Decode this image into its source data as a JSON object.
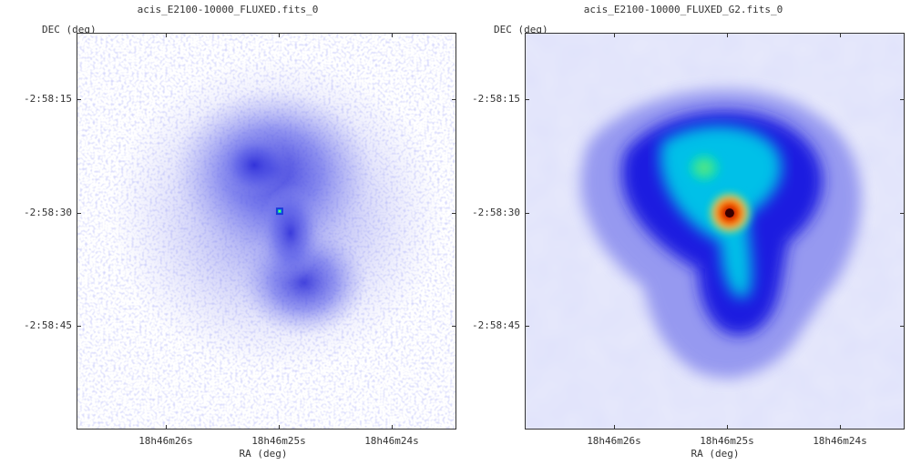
{
  "panels": [
    {
      "title": "acis_E2100-10000_FLUXED.fits_0",
      "y_axis_label": "DEC (deg)",
      "x_axis_label": "RA (deg)",
      "y_ticks": [
        "-2:58:15",
        "-2:58:30",
        "-2:58:45"
      ],
      "x_ticks": [
        "18h46m26s",
        "18h46m25s",
        "18h46m24s"
      ]
    },
    {
      "title": "acis_E2100-10000_FLUXED_G2.fits_0",
      "y_axis_label": "DEC (deg)",
      "x_axis_label": "RA (deg)",
      "y_ticks": [
        "-2:58:15",
        "-2:58:30",
        "-2:58:45"
      ],
      "x_ticks": [
        "18h46m26s",
        "18h46m25s",
        "18h46m24s"
      ]
    }
  ],
  "colors": {
    "background_map": "#e9e9fb",
    "low_emission": "#8a8ef0",
    "mid_emission": "#1c1ce0",
    "high_emission": "#00c8d8",
    "peak_emission": "#ff2a00",
    "core": "#5a0000"
  }
}
